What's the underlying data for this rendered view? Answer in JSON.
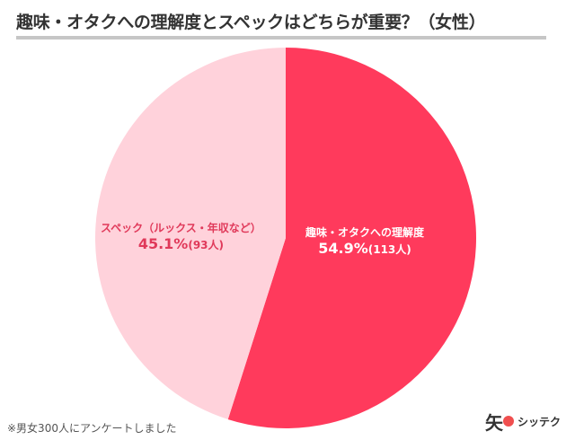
{
  "title": "趣味・オタクへの理解度とスペックはどちらが重要？（女性）",
  "footnote": "※男女300人にアンケートしました",
  "logo": {
    "mark": "矢",
    "text": "シッテク"
  },
  "colors": {
    "slice_a": "#ff3a5c",
    "slice_b": "#ffd2db",
    "rule": "#c6c6c6",
    "title": "#333333"
  },
  "chart_data": {
    "type": "pie",
    "slices": [
      {
        "label": "趣味・オタクへの理解度",
        "percent": 54.9,
        "percent_label": "54.9%",
        "count_label": "(113人)",
        "color": "#ff3a5c"
      },
      {
        "label": "スペック（ルックス・年収など）",
        "percent": 45.1,
        "percent_label": "45.1%",
        "count_label": "(93人)",
        "color": "#ffd2db"
      }
    ],
    "start": "12 o'clock",
    "direction": "clockwise"
  }
}
